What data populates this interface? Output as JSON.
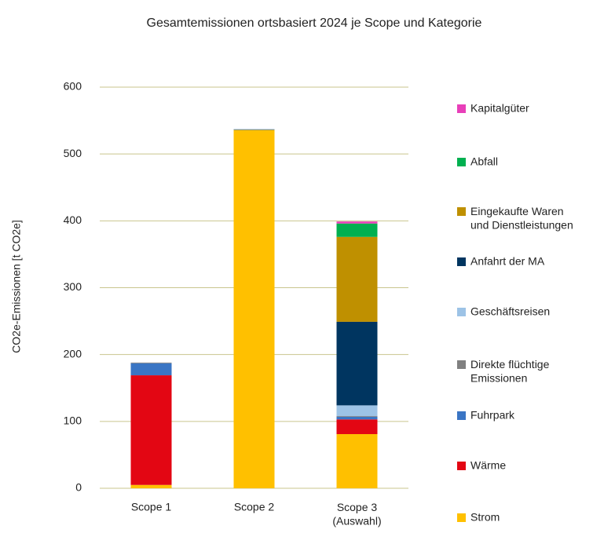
{
  "chart_data": {
    "type": "bar",
    "stacked": true,
    "title": "Gesamtemissionen ortsbasiert 2024 je Scope und Kategorie",
    "y_label": "CO2e-Emissionen [t CO2e]",
    "categories": [
      "Scope 1",
      "Scope 2",
      "Scope 3\n(Auswahl)"
    ],
    "ylim": [
      0,
      600
    ],
    "yticks": [
      0,
      100,
      200,
      300,
      400,
      500,
      600
    ],
    "grid": true,
    "legend": "right",
    "series": [
      {
        "name": "Strom",
        "color": "#ffc000",
        "values": [
          5,
          536,
          81
        ]
      },
      {
        "name": "Wärme",
        "color": "#e30613",
        "values": [
          164,
          0,
          22
        ]
      },
      {
        "name": "Fuhrpark",
        "color": "#3a75c4",
        "values": [
          18,
          1,
          4
        ]
      },
      {
        "name": "Direkte flüchtige\nEmissionen",
        "color": "#808080",
        "values": [
          1,
          0,
          1
        ]
      },
      {
        "name": "Geschäftsreisen",
        "color": "#9dc3e6",
        "values": [
          0,
          0,
          16
        ]
      },
      {
        "name": "Anfahrt der MA",
        "color": "#003560",
        "values": [
          0,
          0,
          125
        ]
      },
      {
        "name": "Eingekaufte Waren\nund Dienstleistungen",
        "color": "#bf9000",
        "values": [
          0,
          0,
          127
        ]
      },
      {
        "name": "Abfall",
        "color": "#00b050",
        "values": [
          0,
          0,
          20
        ]
      },
      {
        "name": "Kapitalgüter",
        "color": "#e83fb9",
        "values": [
          0,
          0,
          3
        ]
      }
    ]
  }
}
